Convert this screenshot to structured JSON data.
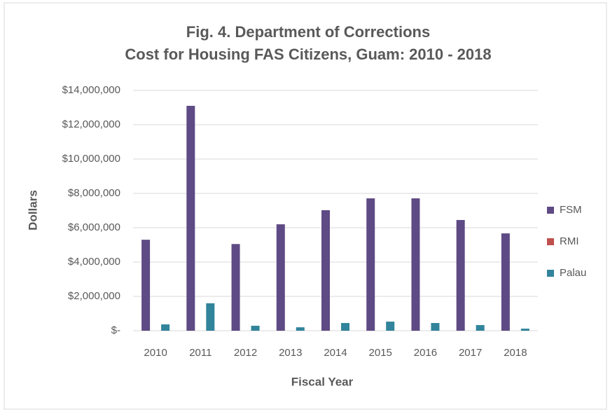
{
  "chart_data": {
    "type": "bar",
    "title": "Fig. 4. Department of Corrections",
    "subtitle": "Cost for Housing FAS Citizens, Guam: 2010 - 2018",
    "x_label": "Fiscal Year",
    "y_label": "Dollars",
    "categories": [
      "2010",
      "2011",
      "2012",
      "2013",
      "2014",
      "2015",
      "2016",
      "2017",
      "2018"
    ],
    "series": [
      {
        "name": "FSM",
        "color": "#5e4a84",
        "values": [
          5300000,
          13100000,
          5050000,
          6200000,
          7020000,
          7710000,
          7710000,
          6450000,
          5670000
        ]
      },
      {
        "name": "RMI",
        "color": "#c0504d",
        "values": [
          0,
          0,
          0,
          0,
          0,
          0,
          0,
          0,
          0
        ]
      },
      {
        "name": "Palau",
        "color": "#31849b",
        "values": [
          370000,
          1600000,
          290000,
          200000,
          450000,
          530000,
          450000,
          330000,
          120000
        ]
      }
    ],
    "ylim": [
      0,
      14000000
    ],
    "yticks": [
      {
        "value": 0,
        "label": "$-"
      },
      {
        "value": 2000000,
        "label": "$2,000,000"
      },
      {
        "value": 4000000,
        "label": "$4,000,000"
      },
      {
        "value": 6000000,
        "label": "$6,000,000"
      },
      {
        "value": 8000000,
        "label": "$8,000,000"
      },
      {
        "value": 10000000,
        "label": "$10,000,000"
      },
      {
        "value": 12000000,
        "label": "$12,000,000"
      },
      {
        "value": 14000000,
        "label": "$14,000,000"
      }
    ],
    "grid": true,
    "legend": "right"
  }
}
